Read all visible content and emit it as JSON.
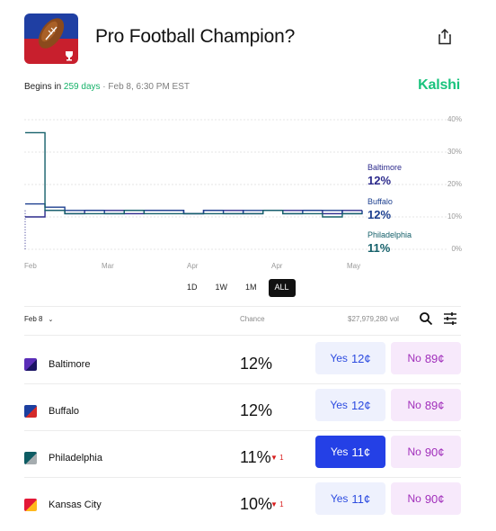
{
  "header": {
    "title": "Pro Football Champion?",
    "begins_label": "Begins in",
    "days": "259 days",
    "date_text": " · Feb 8, 6:30 PM EST",
    "brand": "Kalshi",
    "logo_icon": "football-trophy-icon",
    "share_icon": "share-icon"
  },
  "chart_data": {
    "type": "line",
    "xlabel": "",
    "ylabel": "",
    "ylim": [
      0,
      40
    ],
    "y_ticks": [
      "40%",
      "30%",
      "20%",
      "10%",
      "0%"
    ],
    "x_ticks": [
      "Feb",
      "Mar",
      "Apr",
      "Apr",
      "May"
    ],
    "grid": true,
    "series": [
      {
        "name": "Baltimore",
        "color": "#2c2a8c",
        "label_value": "12%",
        "values": [
          10,
          12,
          11,
          12,
          12,
          11,
          12,
          12,
          11,
          12,
          12,
          11,
          12,
          12,
          12,
          11,
          12,
          12
        ]
      },
      {
        "name": "Buffalo",
        "color": "#1c3f8f",
        "label_value": "12%",
        "values": [
          14,
          13,
          12,
          12,
          11,
          12,
          12,
          12,
          11,
          12,
          11,
          12,
          12,
          11,
          12,
          12,
          11,
          12
        ]
      },
      {
        "name": "Philadelphia",
        "color": "#15606a",
        "label_value": "11%",
        "values": [
          36,
          12,
          11,
          11,
          11,
          12,
          11,
          11,
          11,
          11,
          11,
          11,
          12,
          11,
          11,
          10,
          11,
          11
        ]
      }
    ]
  },
  "ranges": [
    "1D",
    "1W",
    "1M",
    "ALL"
  ],
  "active_range": "ALL",
  "table": {
    "date": "Feb 8",
    "chance_header": "Chance",
    "volume": "$27,979,280 vol",
    "search_icon": "search-icon",
    "filter_icon": "sliders-icon",
    "rows": [
      {
        "team": "Baltimore",
        "chance": "12%",
        "delta": "",
        "yes_label": "Yes",
        "yes_price": "12¢",
        "no_label": "No",
        "no_price": "89¢",
        "color_a": "#5a2db8",
        "color_b": "#1b1464"
      },
      {
        "team": "Buffalo",
        "chance": "12%",
        "delta": "",
        "yes_label": "Yes",
        "yes_price": "12¢",
        "no_label": "No",
        "no_price": "89¢",
        "color_a": "#1c3f9f",
        "color_b": "#d42a2a"
      },
      {
        "team": "Philadelphia",
        "chance": "11%",
        "delta": "▼ 1",
        "yes_label": "Yes",
        "yes_price": "11¢",
        "no_label": "No",
        "no_price": "90¢",
        "color_a": "#0d5c63",
        "color_b": "#a5acaf"
      },
      {
        "team": "Kansas City",
        "chance": "10%",
        "delta": "▼ 1",
        "yes_label": "Yes",
        "yes_price": "11¢",
        "no_label": "No",
        "no_price": "90¢",
        "color_a": "#e31837",
        "color_b": "#ffb81c"
      }
    ]
  }
}
